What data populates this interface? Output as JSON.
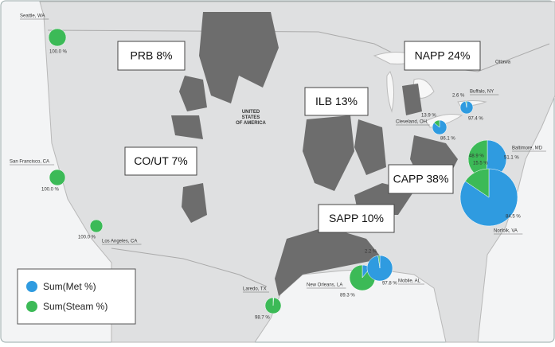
{
  "map_label": [
    "UNITED",
    "STATES",
    "OF AMERICA"
  ],
  "place_labels": [
    "Ottawa"
  ],
  "regions": [
    "PRB 8%",
    "NAPP 24%",
    "ILB 13%",
    "CO/UT 7%",
    "CAPP 38%",
    "SAPP 10%"
  ],
  "legend": [
    {
      "name": "Sum(Met %)",
      "color": "#2f9be0"
    },
    {
      "name": "Sum(Steam %)",
      "color": "#3cba57"
    }
  ],
  "pies": [
    {
      "city": "Seattle, WA",
      "values": [
        0,
        100
      ],
      "value_labels": [
        null,
        "100.0 %"
      ]
    },
    {
      "city": "San Francisco, CA",
      "values": [
        0,
        100
      ],
      "value_labels": [
        null,
        "100.0 %"
      ]
    },
    {
      "city": "Los Angeles, CA",
      "values": [
        0,
        100
      ],
      "value_labels": [
        null,
        "100.0 %"
      ]
    },
    {
      "city": "Laredo, TX",
      "values": [
        1.3,
        98.7
      ],
      "value_labels": [
        null,
        "98.7 %"
      ]
    },
    {
      "city": "New Orleans, LA",
      "values": [
        10.7,
        89.3
      ],
      "value_labels": [
        null,
        "89.3 %"
      ]
    },
    {
      "city": "Mobile, AL",
      "values": [
        97.8,
        2.2
      ],
      "value_labels": [
        "97.8 %",
        "2.2 %"
      ]
    },
    {
      "city": "Cleveland, OH",
      "values": [
        86.1,
        13.9
      ],
      "value_labels": [
        "86.1 %",
        "13.9 %"
      ]
    },
    {
      "city": "Buffalo, NY",
      "values": [
        97.4,
        2.6
      ],
      "value_labels": [
        "97.4 %",
        "2.6 %"
      ]
    },
    {
      "city": "Baltimore, MD",
      "values": [
        51.1,
        48.9
      ],
      "value_labels": [
        "51.1 %",
        "48.9 %"
      ]
    },
    {
      "city": "Norfolk, VA",
      "values": [
        84.5,
        15.5
      ],
      "value_labels": [
        "84.5 %",
        "15.5 %"
      ]
    }
  ]
}
